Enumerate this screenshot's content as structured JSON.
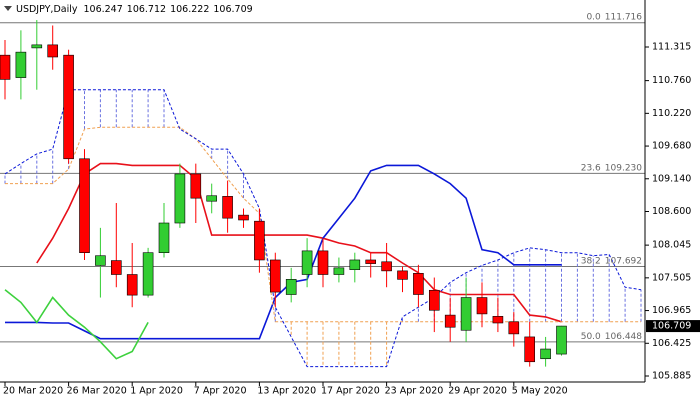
{
  "chart_data": {
    "type": "candlestick",
    "symbol": "USDJPY,Daily",
    "categories": [
      "20 Mar 2020",
      null,
      null,
      null,
      "26 Mar 2020",
      null,
      null,
      null,
      "1 Apr 2020",
      null,
      null,
      null,
      "7 Apr 2020",
      null,
      null,
      null,
      "13 Apr 2020",
      null,
      null,
      null,
      "17 Apr 2020",
      null,
      null,
      null,
      "23 Apr 2020",
      null,
      null,
      null,
      "29 Apr 2020",
      null,
      null,
      null,
      "5 May 2020",
      null,
      null,
      null,
      null,
      null,
      null,
      null,
      null
    ],
    "open": [
      111.18,
      110.81,
      111.3,
      111.35,
      111.18,
      109.47,
      107.71,
      107.79,
      107.56,
      107.22,
      107.92,
      108.41,
      109.22,
      108.77,
      108.85,
      108.54,
      108.44,
      107.8,
      107.23,
      107.56,
      107.95,
      107.56,
      107.64,
      107.8,
      107.77,
      107.62,
      107.58,
      107.3,
      106.89,
      106.64,
      107.18,
      106.87,
      106.78,
      106.53,
      106.17,
      106.247,
      null,
      null,
      null,
      null,
      null
    ],
    "high": [
      111.43,
      111.59,
      111.76,
      111.67,
      111.27,
      109.63,
      108.33,
      108.74,
      108.08,
      108.0,
      108.74,
      109.39,
      109.39,
      109.06,
      109.11,
      108.65,
      108.65,
      107.92,
      107.67,
      108.16,
      108.16,
      107.84,
      107.92,
      107.92,
      108.08,
      107.69,
      107.72,
      107.51,
      107.18,
      107.51,
      107.43,
      107.18,
      106.94,
      106.78,
      106.53,
      106.712,
      null,
      null,
      null,
      null,
      null
    ],
    "low": [
      110.45,
      110.45,
      110.61,
      110.94,
      109.39,
      107.8,
      107.18,
      107.35,
      107.02,
      107.18,
      107.84,
      108.33,
      108.41,
      108.57,
      108.25,
      108.33,
      107.59,
      107.02,
      107.1,
      107.35,
      107.35,
      107.43,
      107.43,
      107.51,
      107.35,
      107.27,
      107.02,
      106.61,
      106.45,
      106.45,
      106.69,
      106.61,
      106.37,
      106.04,
      106.04,
      106.222,
      null,
      null,
      null,
      null,
      null
    ],
    "close": [
      110.78,
      111.23,
      111.35,
      111.15,
      109.47,
      107.92,
      107.87,
      107.56,
      107.22,
      107.92,
      108.41,
      109.22,
      108.82,
      108.86,
      108.49,
      108.46,
      107.8,
      107.27,
      107.48,
      107.95,
      107.56,
      107.67,
      107.8,
      107.74,
      107.62,
      107.48,
      107.23,
      106.97,
      106.69,
      107.18,
      106.91,
      106.76,
      106.58,
      106.12,
      106.33,
      106.709,
      null,
      null,
      null,
      null,
      null
    ],
    "up_color": "#32cd32",
    "down_color": "#ff0000",
    "series": [
      {
        "color": "#e8101a",
        "dash": false,
        "values": [
          null,
          null,
          107.75,
          108.16,
          108.65,
          109.22,
          109.39,
          109.39,
          109.36,
          109.36,
          109.36,
          109.36,
          109.14,
          108.21,
          108.21,
          108.21,
          108.21,
          108.21,
          108.21,
          108.21,
          108.16,
          108.08,
          108.03,
          107.92,
          107.92,
          107.75,
          107.59,
          107.31,
          107.23,
          107.23,
          107.23,
          107.23,
          107.23,
          106.89,
          106.86,
          106.78,
          null,
          null,
          null,
          null,
          null
        ]
      },
      {
        "color": "#0b18d8",
        "dash": false,
        "values": [
          106.77,
          106.77,
          106.77,
          106.76,
          106.76,
          106.63,
          106.5,
          106.5,
          106.5,
          106.5,
          106.5,
          106.5,
          106.5,
          106.5,
          106.5,
          106.5,
          106.5,
          107.18,
          107.43,
          107.48,
          108.16,
          108.49,
          108.82,
          109.27,
          109.36,
          109.36,
          109.36,
          109.22,
          109.06,
          108.82,
          107.97,
          107.92,
          107.72,
          107.72,
          107.72,
          107.72,
          null,
          null,
          null,
          null,
          null
        ]
      },
      {
        "color": "#3dd13d",
        "dash": false,
        "values": [
          107.31,
          107.1,
          106.77,
          107.18,
          106.89,
          106.69,
          106.45,
          106.17,
          106.29,
          106.77,
          null,
          null,
          null,
          null,
          null,
          null,
          null,
          null,
          null,
          null,
          null,
          null,
          null,
          null,
          null,
          null,
          null,
          null,
          null,
          null,
          null,
          null,
          null,
          null,
          null,
          null,
          null,
          null,
          null,
          null,
          null
        ]
      },
      {
        "color": "#f0a050",
        "dash": true,
        "values": [
          109.06,
          109.06,
          109.06,
          109.06,
          109.3,
          109.96,
          109.99,
          109.99,
          109.99,
          109.99,
          109.99,
          109.99,
          109.8,
          109.47,
          109.14,
          108.82,
          108.57,
          106.78,
          106.78,
          106.78,
          106.78,
          106.78,
          106.78,
          106.78,
          106.78,
          106.78,
          106.78,
          106.78,
          106.78,
          106.78,
          106.78,
          106.78,
          106.78,
          106.78,
          106.78,
          106.78,
          106.78,
          106.78,
          106.78,
          106.78,
          106.78
        ]
      },
      {
        "color": "#0b18d8",
        "dash": true,
        "values": [
          109.22,
          109.39,
          109.55,
          109.63,
          110.61,
          110.61,
          110.61,
          110.61,
          110.61,
          110.61,
          110.61,
          109.96,
          109.8,
          109.63,
          109.63,
          109.22,
          108.65,
          107.02,
          106.53,
          106.04,
          106.04,
          106.04,
          106.04,
          106.04,
          106.04,
          106.86,
          107.02,
          107.18,
          107.43,
          107.59,
          107.71,
          107.8,
          107.92,
          108.0,
          107.97,
          107.92,
          107.92,
          107.87,
          107.89,
          107.35,
          107.31
        ]
      }
    ],
    "levels": [
      {
        "ratio": "0.0",
        "price": 111.716
      },
      {
        "ratio": "23.6",
        "price": {
          "value": 109.23,
          "label": "109.230"
        }
      },
      {
        "ratio": "38.2",
        "price": 107.692
      },
      {
        "ratio": "50.0",
        "price": 106.448
      }
    ],
    "ylim": [
      105.786,
      112.008
    ],
    "yticks": [
      111.315,
      {
        "value": 110.76,
        "label": "110.760"
      },
      {
        "value": 110.22,
        "label": "110.220"
      },
      {
        "value": 109.68,
        "label": "109.680"
      },
      {
        "value": 109.14,
        "label": "109.140"
      },
      {
        "value": 108.6,
        "label": "108.600"
      },
      108.045,
      107.505,
      106.965,
      106.425,
      105.885
    ]
  }
}
